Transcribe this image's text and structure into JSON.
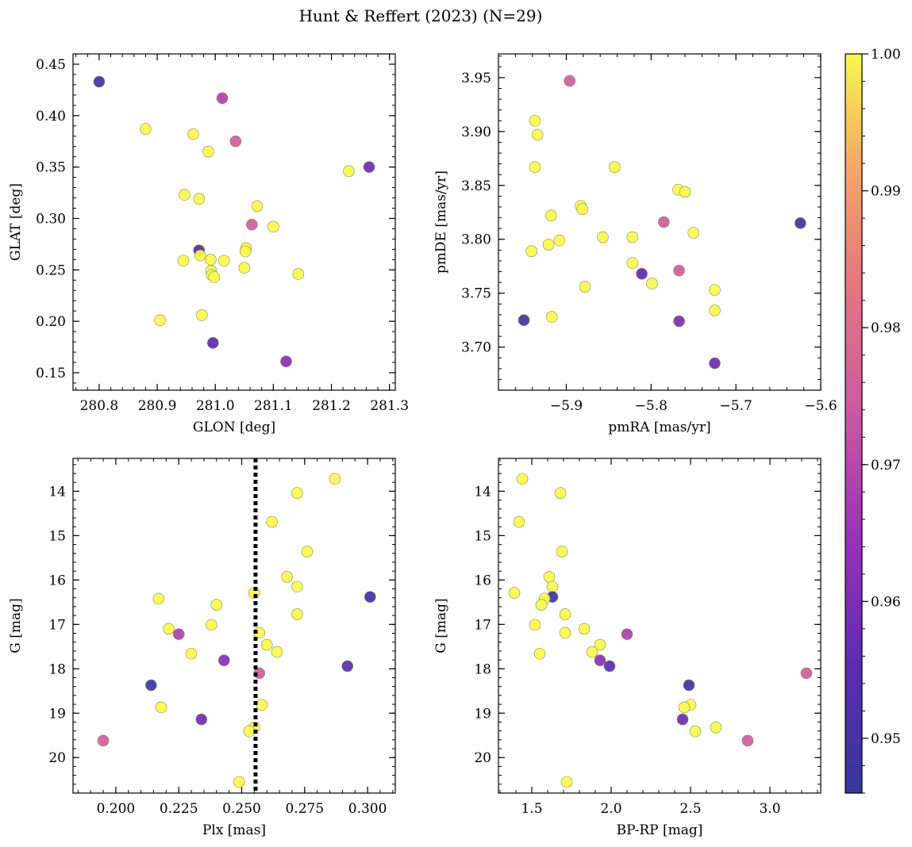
{
  "figure": {
    "title": "Hunt & Reffert (2023) (N=29)"
  },
  "colorbar": {
    "range": [
      0.946,
      1.0
    ],
    "ticks": [
      0.95,
      0.96,
      0.97,
      0.98,
      0.99,
      1.0
    ],
    "tick_labels": [
      "0.95",
      "0.96",
      "0.97",
      "0.98",
      "0.99",
      "1.00"
    ],
    "colormap": "plasma"
  },
  "chart_data": [
    {
      "type": "scatter",
      "xlabel": "GLON [deg]",
      "ylabel": "GLAT [deg]",
      "xlim": [
        280.755,
        281.31
      ],
      "ylim": [
        0.133,
        0.46
      ],
      "y_inverted": false,
      "xticks": [
        280.8,
        280.9,
        281.0,
        281.1,
        281.2,
        281.3
      ],
      "xtick_labels": [
        "280.8",
        "280.9",
        "281.0",
        "281.1",
        "281.2",
        "281.3"
      ],
      "yticks": [
        0.15,
        0.2,
        0.25,
        0.3,
        0.35,
        0.4,
        0.45
      ],
      "ytick_labels": [
        "0.15",
        "0.20",
        "0.25",
        "0.30",
        "0.35",
        "0.40",
        "0.45"
      ],
      "points": [
        {
          "x": 280.8,
          "y": 0.433,
          "c": 0.948
        },
        {
          "x": 281.012,
          "y": 0.417,
          "c": 0.968
        },
        {
          "x": 280.88,
          "y": 0.387,
          "c": 1.0
        },
        {
          "x": 280.962,
          "y": 0.382,
          "c": 1.0
        },
        {
          "x": 281.035,
          "y": 0.375,
          "c": 0.975
        },
        {
          "x": 280.988,
          "y": 0.365,
          "c": 1.0
        },
        {
          "x": 281.23,
          "y": 0.346,
          "c": 1.0
        },
        {
          "x": 281.265,
          "y": 0.35,
          "c": 0.958
        },
        {
          "x": 280.947,
          "y": 0.323,
          "c": 1.0
        },
        {
          "x": 280.972,
          "y": 0.319,
          "c": 1.0
        },
        {
          "x": 281.072,
          "y": 0.312,
          "c": 1.0
        },
        {
          "x": 281.063,
          "y": 0.294,
          "c": 0.975
        },
        {
          "x": 281.1,
          "y": 0.292,
          "c": 1.0
        },
        {
          "x": 280.972,
          "y": 0.269,
          "c": 0.95
        },
        {
          "x": 281.053,
          "y": 0.271,
          "c": 1.0
        },
        {
          "x": 281.052,
          "y": 0.268,
          "c": 1.0
        },
        {
          "x": 280.974,
          "y": 0.264,
          "c": 1.0
        },
        {
          "x": 280.945,
          "y": 0.259,
          "c": 1.0
        },
        {
          "x": 280.992,
          "y": 0.26,
          "c": 1.0
        },
        {
          "x": 281.015,
          "y": 0.259,
          "c": 1.0
        },
        {
          "x": 281.05,
          "y": 0.252,
          "c": 1.0
        },
        {
          "x": 280.993,
          "y": 0.249,
          "c": 1.0
        },
        {
          "x": 280.994,
          "y": 0.245,
          "c": 1.0
        },
        {
          "x": 280.998,
          "y": 0.243,
          "c": 1.0
        },
        {
          "x": 281.143,
          "y": 0.246,
          "c": 1.0
        },
        {
          "x": 280.977,
          "y": 0.206,
          "c": 1.0
        },
        {
          "x": 280.905,
          "y": 0.201,
          "c": 1.0
        },
        {
          "x": 280.996,
          "y": 0.179,
          "c": 0.955
        },
        {
          "x": 281.122,
          "y": 0.161,
          "c": 0.962
        }
      ]
    },
    {
      "type": "scatter",
      "xlabel": "pmRA [mas/yr]",
      "ylabel": "pmDE [mas/yr]",
      "xlim": [
        -5.98,
        -5.6
      ],
      "ylim": [
        3.66,
        3.972
      ],
      "y_inverted": false,
      "xticks": [
        -5.9,
        -5.8,
        -5.7,
        -5.6
      ],
      "xtick_labels": [
        "−5.9",
        "−5.8",
        "−5.7",
        "−5.6"
      ],
      "yticks": [
        3.7,
        3.75,
        3.8,
        3.85,
        3.9,
        3.95
      ],
      "ytick_labels": [
        "3.70",
        "3.75",
        "3.80",
        "3.85",
        "3.90",
        "3.95"
      ],
      "points": [
        {
          "x": -5.896,
          "y": 3.947,
          "c": 0.975
        },
        {
          "x": -5.937,
          "y": 3.91,
          "c": 1.0
        },
        {
          "x": -5.934,
          "y": 3.897,
          "c": 1.0
        },
        {
          "x": -5.937,
          "y": 3.867,
          "c": 1.0
        },
        {
          "x": -5.843,
          "y": 3.867,
          "c": 1.0
        },
        {
          "x": -5.768,
          "y": 3.846,
          "c": 1.0
        },
        {
          "x": -5.76,
          "y": 3.844,
          "c": 1.0
        },
        {
          "x": -5.883,
          "y": 3.831,
          "c": 1.0
        },
        {
          "x": -5.881,
          "y": 3.828,
          "c": 1.0
        },
        {
          "x": -5.918,
          "y": 3.822,
          "c": 1.0
        },
        {
          "x": -5.785,
          "y": 3.816,
          "c": 0.975
        },
        {
          "x": -5.624,
          "y": 3.815,
          "c": 0.948
        },
        {
          "x": -5.75,
          "y": 3.806,
          "c": 1.0
        },
        {
          "x": -5.857,
          "y": 3.802,
          "c": 1.0
        },
        {
          "x": -5.822,
          "y": 3.802,
          "c": 1.0
        },
        {
          "x": -5.908,
          "y": 3.799,
          "c": 1.0
        },
        {
          "x": -5.921,
          "y": 3.795,
          "c": 1.0
        },
        {
          "x": -5.941,
          "y": 3.789,
          "c": 1.0
        },
        {
          "x": -5.822,
          "y": 3.778,
          "c": 1.0
        },
        {
          "x": -5.767,
          "y": 3.771,
          "c": 0.975
        },
        {
          "x": -5.811,
          "y": 3.768,
          "c": 0.955
        },
        {
          "x": -5.799,
          "y": 3.759,
          "c": 1.0
        },
        {
          "x": -5.878,
          "y": 3.756,
          "c": 1.0
        },
        {
          "x": -5.725,
          "y": 3.753,
          "c": 1.0
        },
        {
          "x": -5.725,
          "y": 3.734,
          "c": 1.0
        },
        {
          "x": -5.917,
          "y": 3.728,
          "c": 1.0
        },
        {
          "x": -5.95,
          "y": 3.725,
          "c": 0.948
        },
        {
          "x": -5.767,
          "y": 3.724,
          "c": 0.96
        },
        {
          "x": -5.725,
          "y": 3.685,
          "c": 0.958
        }
      ]
    },
    {
      "type": "scatter",
      "xlabel": "Plx [mas]",
      "ylabel": "G [mag]",
      "xlim": [
        0.183,
        0.311
      ],
      "ylim": [
        13.26,
        20.8
      ],
      "y_inverted": true,
      "xticks": [
        0.2,
        0.225,
        0.25,
        0.275,
        0.3
      ],
      "xtick_labels": [
        "0.200",
        "0.225",
        "0.250",
        "0.275",
        "0.300"
      ],
      "yticks": [
        14,
        15,
        16,
        17,
        18,
        19,
        20
      ],
      "ytick_labels": [
        "14",
        "15",
        "16",
        "17",
        "18",
        "19",
        "20"
      ],
      "vline": 0.2555,
      "points": [
        {
          "x": 0.287,
          "y": 13.72,
          "c": 1.0
        },
        {
          "x": 0.272,
          "y": 14.04,
          "c": 1.0
        },
        {
          "x": 0.262,
          "y": 14.69,
          "c": 1.0
        },
        {
          "x": 0.276,
          "y": 15.36,
          "c": 1.0
        },
        {
          "x": 0.268,
          "y": 15.93,
          "c": 1.0
        },
        {
          "x": 0.272,
          "y": 16.15,
          "c": 1.0
        },
        {
          "x": 0.255,
          "y": 16.29,
          "c": 1.0
        },
        {
          "x": 0.301,
          "y": 16.38,
          "c": 0.948
        },
        {
          "x": 0.217,
          "y": 16.42,
          "c": 1.0
        },
        {
          "x": 0.24,
          "y": 16.56,
          "c": 1.0
        },
        {
          "x": 0.272,
          "y": 16.77,
          "c": 1.0
        },
        {
          "x": 0.238,
          "y": 17.01,
          "c": 1.0
        },
        {
          "x": 0.221,
          "y": 17.1,
          "c": 1.0
        },
        {
          "x": 0.257,
          "y": 17.19,
          "c": 1.0
        },
        {
          "x": 0.225,
          "y": 17.22,
          "c": 0.968
        },
        {
          "x": 0.26,
          "y": 17.46,
          "c": 1.0
        },
        {
          "x": 0.264,
          "y": 17.62,
          "c": 1.0
        },
        {
          "x": 0.23,
          "y": 17.66,
          "c": 1.0
        },
        {
          "x": 0.243,
          "y": 17.81,
          "c": 0.962
        },
        {
          "x": 0.292,
          "y": 17.94,
          "c": 0.955
        },
        {
          "x": 0.257,
          "y": 18.1,
          "c": 0.975
        },
        {
          "x": 0.214,
          "y": 18.37,
          "c": 0.948
        },
        {
          "x": 0.258,
          "y": 18.81,
          "c": 1.0
        },
        {
          "x": 0.218,
          "y": 18.87,
          "c": 1.0
        },
        {
          "x": 0.234,
          "y": 19.14,
          "c": 0.958
        },
        {
          "x": 0.255,
          "y": 19.32,
          "c": 1.0
        },
        {
          "x": 0.253,
          "y": 19.41,
          "c": 1.0
        },
        {
          "x": 0.195,
          "y": 19.62,
          "c": 0.975
        },
        {
          "x": 0.249,
          "y": 20.55,
          "c": 1.0
        }
      ]
    },
    {
      "type": "scatter",
      "xlabel": "BP-RP [mag]",
      "ylabel": "G [mag]",
      "xlim": [
        1.29,
        3.32
      ],
      "ylim": [
        13.26,
        20.8
      ],
      "y_inverted": true,
      "xticks": [
        1.5,
        2.0,
        2.5,
        3.0
      ],
      "xtick_labels": [
        "1.5",
        "2.0",
        "2.5",
        "3.0"
      ],
      "yticks": [
        14,
        15,
        16,
        17,
        18,
        19,
        20
      ],
      "ytick_labels": [
        "14",
        "15",
        "16",
        "17",
        "18",
        "19",
        "20"
      ],
      "points": [
        {
          "x": 1.44,
          "y": 13.72,
          "c": 1.0
        },
        {
          "x": 1.68,
          "y": 14.04,
          "c": 1.0
        },
        {
          "x": 1.42,
          "y": 14.69,
          "c": 1.0
        },
        {
          "x": 1.69,
          "y": 15.36,
          "c": 1.0
        },
        {
          "x": 1.61,
          "y": 15.93,
          "c": 1.0
        },
        {
          "x": 1.63,
          "y": 16.15,
          "c": 1.0
        },
        {
          "x": 1.39,
          "y": 16.29,
          "c": 1.0
        },
        {
          "x": 1.63,
          "y": 16.38,
          "c": 0.948
        },
        {
          "x": 1.58,
          "y": 16.42,
          "c": 1.0
        },
        {
          "x": 1.56,
          "y": 16.56,
          "c": 1.0
        },
        {
          "x": 1.71,
          "y": 16.77,
          "c": 1.0
        },
        {
          "x": 1.52,
          "y": 17.01,
          "c": 1.0
        },
        {
          "x": 1.83,
          "y": 17.1,
          "c": 1.0
        },
        {
          "x": 1.71,
          "y": 17.19,
          "c": 1.0
        },
        {
          "x": 2.1,
          "y": 17.22,
          "c": 0.968
        },
        {
          "x": 1.93,
          "y": 17.46,
          "c": 1.0
        },
        {
          "x": 1.88,
          "y": 17.62,
          "c": 1.0
        },
        {
          "x": 1.55,
          "y": 17.66,
          "c": 1.0
        },
        {
          "x": 1.93,
          "y": 17.81,
          "c": 0.962
        },
        {
          "x": 1.99,
          "y": 17.94,
          "c": 0.955
        },
        {
          "x": 3.23,
          "y": 18.1,
          "c": 0.975
        },
        {
          "x": 2.49,
          "y": 18.37,
          "c": 0.948
        },
        {
          "x": 2.5,
          "y": 18.81,
          "c": 1.0
        },
        {
          "x": 2.46,
          "y": 18.87,
          "c": 1.0
        },
        {
          "x": 2.45,
          "y": 19.14,
          "c": 0.958
        },
        {
          "x": 2.66,
          "y": 19.32,
          "c": 1.0
        },
        {
          "x": 2.53,
          "y": 19.41,
          "c": 1.0
        },
        {
          "x": 2.86,
          "y": 19.62,
          "c": 0.975
        },
        {
          "x": 1.72,
          "y": 20.55,
          "c": 1.0
        }
      ]
    }
  ]
}
